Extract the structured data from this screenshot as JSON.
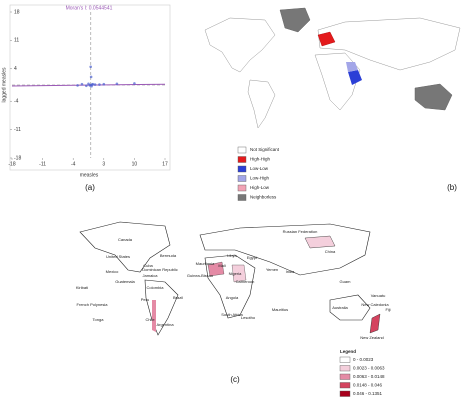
{
  "chart_data": {
    "type": "scatter",
    "title": "Moran's I: 0.0544541",
    "x_label": "measles",
    "y_label": "lagged measles",
    "x": [
      0,
      0.3,
      -0.2,
      0.5,
      0,
      0.1,
      -0.5,
      1,
      -1,
      3,
      -3,
      0.2,
      2,
      -2,
      6,
      10
    ],
    "values": [
      0,
      0.1,
      -0.1,
      0.2,
      4.5,
      2,
      0.3,
      0.1,
      -0.2,
      0.2,
      -0.1,
      -0.3,
      0.1,
      0.2,
      0.3,
      0.4
    ],
    "color": "#4a5fd0",
    "xlim": [
      -18,
      17
    ],
    "ylim": [
      -18,
      18
    ],
    "xticks": [
      -18,
      -11,
      -4,
      3,
      10,
      17
    ],
    "yticks": [
      18,
      11,
      4,
      -4,
      -11,
      -18
    ]
  },
  "panel_labels": [
    "(a)",
    "(b)",
    "(c)"
  ],
  "map_b": {
    "legend": [
      {
        "label": "Not Significant",
        "color": "#ffffff"
      },
      {
        "label": "High-High",
        "color": "#e41a1c"
      },
      {
        "label": "Low-Low",
        "color": "#2b3fd6"
      },
      {
        "label": "Low-High",
        "color": "#a3a6e8"
      },
      {
        "label": "High-Low",
        "color": "#f2a3b5"
      },
      {
        "label": "Neighborless",
        "color": "#777777"
      }
    ]
  },
  "map_c": {
    "legend_title": "Legend",
    "legend": [
      {
        "label": "0 - 0.0023",
        "color": "#ffffff"
      },
      {
        "label": "0.0023 - 0.0063",
        "color": "#f4cfdc"
      },
      {
        "label": "0.0063 - 0.0148",
        "color": "#e48aa5"
      },
      {
        "label": "0.0148 - 0.046",
        "color": "#d4435f"
      },
      {
        "label": "0.046 - 0.1351",
        "color": "#a8001c"
      }
    ],
    "labels": [
      "Canada",
      "United States",
      "Bermuda",
      "Mexico",
      "Cuba",
      "Dominican Republic",
      "Guatemala",
      "Jamaica",
      "Colombia",
      "Kiribati",
      "French Polynesia",
      "Tonga",
      "Peru",
      "Brazil",
      "Chile",
      "Argentina",
      "Mauritania",
      "Mali",
      "Guinea-Bissau",
      "Nigeria",
      "Cameroon",
      "Angola",
      "South Africa",
      "Lesotho",
      "Libya",
      "Egypt",
      "Yemen",
      "Russian Federation",
      "China",
      "India",
      "Mauritius",
      "Guam",
      "Australia",
      "Vanuatu",
      "Fiji",
      "New Caledonia",
      "New Zealand"
    ]
  }
}
